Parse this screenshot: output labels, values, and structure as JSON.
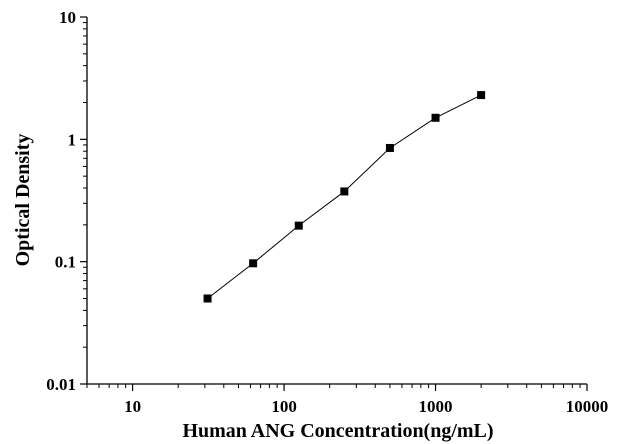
{
  "chart_data": {
    "type": "scatter",
    "title": "",
    "xlabel": "Human ANG Concentration(ng/mL)",
    "ylabel": "Optical Density",
    "x_scale": "log",
    "y_scale": "log",
    "xlim": [
      5,
      10000
    ],
    "ylim": [
      0.01,
      10
    ],
    "x_ticks": [
      {
        "value": 10,
        "label": "10"
      },
      {
        "value": 100,
        "label": "100"
      },
      {
        "value": 1000,
        "label": "1000"
      },
      {
        "value": 10000,
        "label": "10000"
      }
    ],
    "y_ticks": [
      {
        "value": 0.01,
        "label": "0.01"
      },
      {
        "value": 0.1,
        "label": "0.1"
      },
      {
        "value": 1,
        "label": "1"
      },
      {
        "value": 10,
        "label": "10"
      }
    ],
    "grid": false,
    "legend": "none",
    "series": [
      {
        "x": [
          31.25,
          62.5,
          125,
          250,
          500,
          1000,
          2000
        ],
        "y": [
          0.05,
          0.097,
          0.197,
          0.375,
          0.85,
          1.5,
          2.3
        ],
        "marker": "square",
        "line": true,
        "color": "#000000"
      }
    ]
  }
}
